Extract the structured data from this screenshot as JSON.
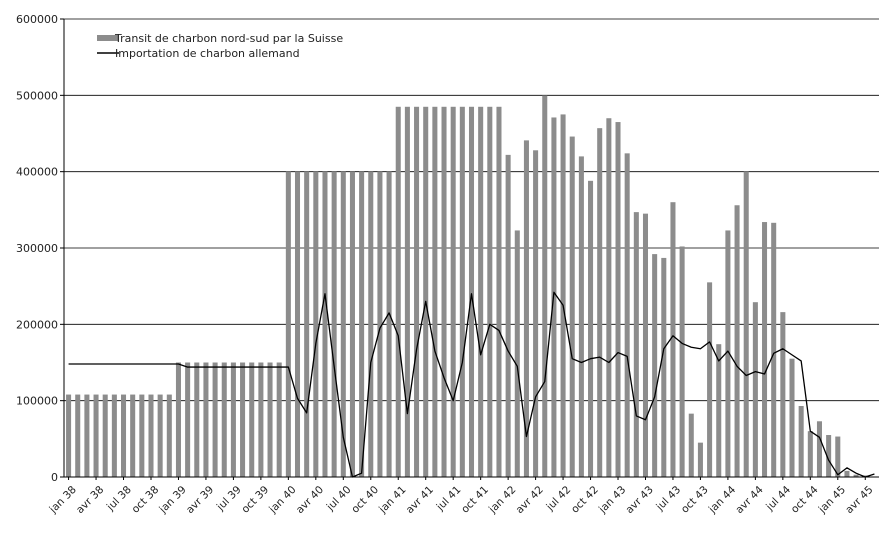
{
  "chart_data": {
    "type": "bar",
    "title": "",
    "xlabel": "",
    "ylabel": "",
    "ylim": [
      0,
      600000
    ],
    "yticks": [
      "0",
      "100000",
      "200000",
      "300000",
      "400000",
      "500000",
      "600000"
    ],
    "grid": true,
    "legend_position": "top-left",
    "x_tick_labels": [
      "jan 38",
      "avr 38",
      "jul 38",
      "oct 38",
      "jan 39",
      "avr 39",
      "jul 39",
      "oct 39",
      "jan 40",
      "avr 40",
      "jul 40",
      "oct 40",
      "jan 41",
      "avr 41",
      "jul 41",
      "oct 41",
      "jan 42",
      "avr 42",
      "jul 42",
      "oct 42",
      "jan 43",
      "avr 43",
      "jul 43",
      "oct 43",
      "jan 44",
      "avr 44",
      "jul 44",
      "oct 44",
      "jan 45",
      "avr 45"
    ],
    "x": [
      "1938-01",
      "1938-02",
      "1938-03",
      "1938-04",
      "1938-05",
      "1938-06",
      "1938-07",
      "1938-08",
      "1938-09",
      "1938-10",
      "1938-11",
      "1938-12",
      "1939-01",
      "1939-02",
      "1939-03",
      "1939-04",
      "1939-05",
      "1939-06",
      "1939-07",
      "1939-08",
      "1939-09",
      "1939-10",
      "1939-11",
      "1939-12",
      "1940-01",
      "1940-02",
      "1940-03",
      "1940-04",
      "1940-05",
      "1940-06",
      "1940-07",
      "1940-08",
      "1940-09",
      "1940-10",
      "1940-11",
      "1940-12",
      "1941-01",
      "1941-02",
      "1941-03",
      "1941-04",
      "1941-05",
      "1941-06",
      "1941-07",
      "1941-08",
      "1941-09",
      "1941-10",
      "1941-11",
      "1941-12",
      "1942-01",
      "1942-02",
      "1942-03",
      "1942-04",
      "1942-05",
      "1942-06",
      "1942-07",
      "1942-08",
      "1942-09",
      "1942-10",
      "1942-11",
      "1942-12",
      "1943-01",
      "1943-02",
      "1943-03",
      "1943-04",
      "1943-05",
      "1943-06",
      "1943-07",
      "1943-08",
      "1943-09",
      "1943-10",
      "1943-11",
      "1943-12",
      "1944-01",
      "1944-02",
      "1944-03",
      "1944-04",
      "1944-05",
      "1944-06",
      "1944-07",
      "1944-08",
      "1944-09",
      "1944-10",
      "1944-11",
      "1944-12",
      "1945-01",
      "1945-02",
      "1945-03",
      "1945-04",
      "1945-05"
    ],
    "series": [
      {
        "name": "Transit de charbon nord-sud par la Suisse",
        "kind": "bar",
        "color": "#8c8c8c",
        "values": [
          108000,
          108000,
          108000,
          108000,
          108000,
          108000,
          108000,
          108000,
          108000,
          108000,
          108000,
          108000,
          150000,
          150000,
          150000,
          150000,
          150000,
          150000,
          150000,
          150000,
          150000,
          150000,
          150000,
          150000,
          400000,
          400000,
          400000,
          400000,
          400000,
          400000,
          400000,
          400000,
          400000,
          400000,
          400000,
          400000,
          485000,
          485000,
          485000,
          485000,
          485000,
          485000,
          485000,
          485000,
          485000,
          485000,
          485000,
          485000,
          422000,
          323000,
          441000,
          428000,
          500000,
          471000,
          475000,
          446000,
          420000,
          388000,
          457000,
          470000,
          465000,
          424000,
          347000,
          345000,
          292000,
          287000,
          360000,
          302000,
          83000,
          45000,
          255000,
          174000,
          323000,
          356000,
          400000,
          229000,
          334000,
          333000,
          216000,
          155000,
          93000,
          60000,
          73000,
          55000,
          53000,
          8000,
          3000,
          2000,
          0
        ]
      },
      {
        "name": "Importation de charbon allemand",
        "kind": "line",
        "color": "#000000",
        "values": [
          148000,
          148000,
          148000,
          148000,
          148000,
          148000,
          148000,
          148000,
          148000,
          148000,
          148000,
          148000,
          148000,
          144000,
          144000,
          144000,
          144000,
          144000,
          144000,
          144000,
          144000,
          144000,
          144000,
          144000,
          144000,
          103000,
          84000,
          175000,
          240000,
          145000,
          52000,
          0,
          5000,
          150000,
          195000,
          215000,
          185000,
          83000,
          167000,
          230000,
          165000,
          130000,
          100000,
          150000,
          240000,
          160000,
          200000,
          192000,
          165000,
          145000,
          53000,
          105000,
          125000,
          242000,
          225000,
          155000,
          150000,
          155000,
          157000,
          150000,
          163000,
          158000,
          80000,
          75000,
          105000,
          168000,
          185000,
          175000,
          170000,
          168000,
          177000,
          152000,
          165000,
          145000,
          133000,
          138000,
          135000,
          162000,
          168000,
          160000,
          152000,
          60000,
          52000,
          22000,
          3000,
          12000,
          5000,
          0,
          4000
        ]
      }
    ]
  }
}
